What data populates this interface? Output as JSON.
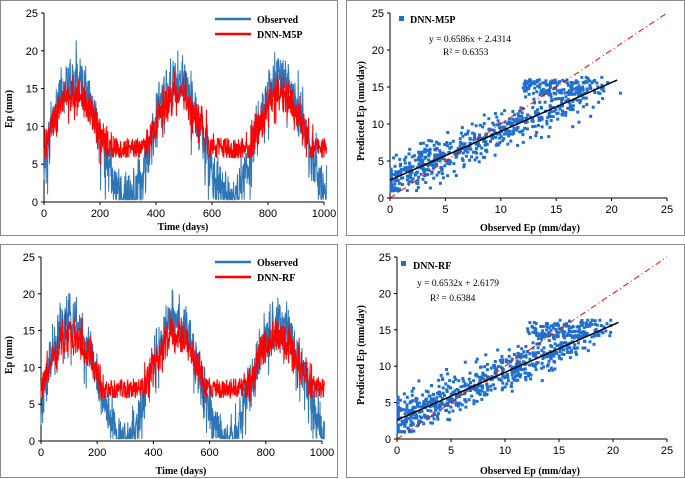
{
  "colors": {
    "observed": "#2e75b6",
    "predicted": "#ff0000",
    "scatter": "#1f6fd0",
    "fit": "#000000",
    "oneToOne": "#ff0000"
  },
  "chart_data": [
    {
      "id": "ts1",
      "type": "line",
      "xlabel": "Time (days)",
      "ylabel": "Ep (mm)",
      "xlim": [
        0,
        1000
      ],
      "ylim": [
        0,
        25
      ],
      "xticks": [
        "0",
        "200",
        "400",
        "600",
        "800",
        "1000"
      ],
      "yticks": [
        "0",
        "5",
        "10",
        "15",
        "20",
        "25"
      ],
      "series": [
        {
          "name": "Observed"
        },
        {
          "name": "DNN-M5P"
        }
      ],
      "note": "daily series (~1000 points) approximated; seasonal peaks ~20-22 mm near day 110, 480, 850; troughs ~1-8 mm near day 290, 660"
    },
    {
      "id": "sc1",
      "type": "scatter",
      "xlabel": "Observed Ep (mm/day)",
      "ylabel": "Predicted Ep (mm/day)",
      "xlim": [
        0,
        25
      ],
      "ylim": [
        0,
        25
      ],
      "xticks": [
        "0",
        "5",
        "10",
        "15",
        "20",
        "25"
      ],
      "yticks": [
        "0",
        "5",
        "10",
        "15",
        "20",
        "25"
      ],
      "legend": "DNN-M5P",
      "equation": "y = 0.6586x + 2.4314",
      "r2": "R² = 0.6353",
      "slope": 0.6586,
      "intercept": 2.4314
    },
    {
      "id": "ts2",
      "type": "line",
      "xlabel": "Time (days)",
      "ylabel": "Ep (mm)",
      "xlim": [
        0,
        1000
      ],
      "ylim": [
        0,
        25
      ],
      "xticks": [
        "0",
        "200",
        "400",
        "600",
        "800",
        "1000"
      ],
      "yticks": [
        "0",
        "5",
        "10",
        "15",
        "20",
        "25"
      ],
      "series": [
        {
          "name": "Observed"
        },
        {
          "name": "DNN-RF"
        }
      ],
      "note": "daily series (~1000 points) approximated"
    },
    {
      "id": "sc2",
      "type": "scatter",
      "xlabel": "Observed Ep (mm/day)",
      "ylabel": "Predicted Ep (mm/day)",
      "xlim": [
        0,
        25
      ],
      "ylim": [
        0,
        25
      ],
      "xticks": [
        "0",
        "5",
        "10",
        "15",
        "20",
        "25"
      ],
      "yticks": [
        "0",
        "5",
        "10",
        "15",
        "20",
        "25"
      ],
      "legend": "DNN-RF",
      "equation": "y = 0.6532x + 2.6179",
      "r2": "R² = 0.6384",
      "slope": 0.6532,
      "intercept": 2.6179
    }
  ]
}
